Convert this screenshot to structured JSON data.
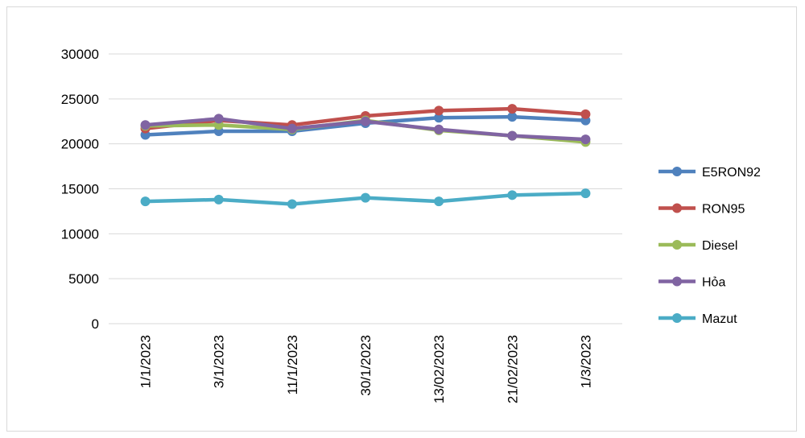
{
  "chart_data": {
    "type": "line",
    "title": "",
    "xlabel": "",
    "ylabel": "",
    "categories": [
      "1/1/2023",
      "3/1/2023",
      "11/1/2023",
      "30/1/2023",
      "13/02/2023",
      "21/02/2023",
      "1/3/2023"
    ],
    "ylim": [
      0,
      30000
    ],
    "yticks": [
      "0",
      "5000",
      "10000",
      "15000",
      "20000",
      "25000",
      "30000"
    ],
    "grid": true,
    "legend": "right",
    "series": [
      {
        "name": "E5RON92",
        "color": "#4f81bd",
        "values": [
          21000,
          21400,
          21400,
          22300,
          22900,
          23000,
          22600
        ]
      },
      {
        "name": "RON95",
        "color": "#c0504d",
        "values": [
          21700,
          22600,
          22100,
          23100,
          23700,
          23900,
          23300
        ]
      },
      {
        "name": "Diesel",
        "color": "#9bbb59",
        "values": [
          22000,
          22100,
          21600,
          22600,
          21500,
          20900,
          20200
        ]
      },
      {
        "name": "Hỏa",
        "color": "#8064a2",
        "values": [
          22100,
          22800,
          21700,
          22500,
          21600,
          20900,
          20500
        ]
      },
      {
        "name": "Mazut",
        "color": "#4bacc6",
        "values": [
          13600,
          13800,
          13300,
          14000,
          13600,
          14300,
          14500
        ]
      }
    ]
  }
}
